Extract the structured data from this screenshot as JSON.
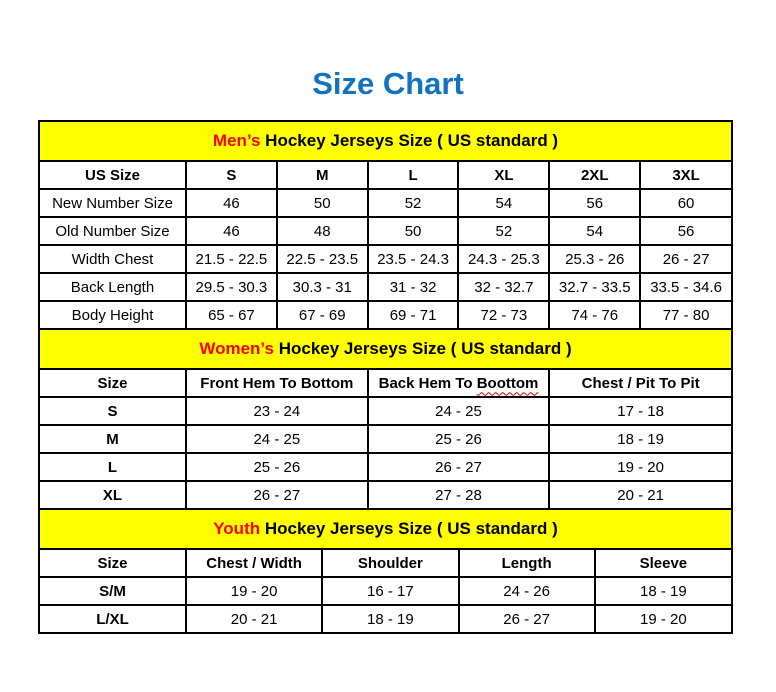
{
  "title": "Size Chart",
  "colors": {
    "title_blue": "#1272c2",
    "banner_yellow": "#ffff00",
    "highlight_red": "#ff0000",
    "border_black": "#000000",
    "misspell_underline_red": "#dd0000"
  },
  "sections": [
    {
      "name": "mens",
      "title_highlight": "Men’s",
      "title_rest": " Hockey Jerseys Size ( US standard )",
      "columns": [
        "US Size",
        "S",
        "M",
        "L",
        "XL",
        "2XL",
        "3XL"
      ],
      "rows": [
        [
          "New Number Size",
          "46",
          "50",
          "52",
          "54",
          "56",
          "60"
        ],
        [
          "Old Number Size",
          "46",
          "48",
          "50",
          "52",
          "54",
          "56"
        ],
        [
          "Width Chest",
          "21.5 - 22.5",
          "22.5 - 23.5",
          "23.5 - 24.3",
          "24.3 - 25.3",
          "25.3 - 26",
          "26 - 27"
        ],
        [
          "Back Length",
          "29.5 - 30.3",
          "30.3 - 31",
          "31 - 32",
          "32 - 32.7",
          "32.7 - 33.5",
          "33.5 - 34.6"
        ],
        [
          "Body Height",
          "65 - 67",
          "67 - 69",
          "69 - 71",
          "72 - 73",
          "74 - 76",
          "77 - 80"
        ]
      ]
    },
    {
      "name": "womens",
      "title_highlight": "Women’s",
      "title_rest": " Hockey Jerseys Size ( US standard )",
      "columns": [
        "Size",
        "Front Hem To Bottom",
        "Back Hem To Boottom",
        "Chest / Pit To Pit"
      ],
      "col3_prefix": "Back Hem To ",
      "col3_misspelled_word": "Boottom",
      "rows": [
        [
          "S",
          "23 - 24",
          "24 - 25",
          "17 - 18"
        ],
        [
          "M",
          "24 - 25",
          "25 - 26",
          "18 - 19"
        ],
        [
          "L",
          "25 - 26",
          "26 - 27",
          "19 - 20"
        ],
        [
          "XL",
          "26 - 27",
          "27 - 28",
          "20 - 21"
        ]
      ]
    },
    {
      "name": "youth",
      "title_highlight": "Youth",
      "title_rest": " Hockey Jerseys Size ( US standard )",
      "columns": [
        "Size",
        "Chest / Width",
        "Shoulder",
        "Length",
        "Sleeve"
      ],
      "rows": [
        [
          "S/M",
          "19 - 20",
          "16 - 17",
          "24 - 26",
          "18 - 19"
        ],
        [
          "L/XL",
          "20 - 21",
          "18 - 19",
          "26 - 27",
          "19 - 20"
        ]
      ]
    }
  ]
}
